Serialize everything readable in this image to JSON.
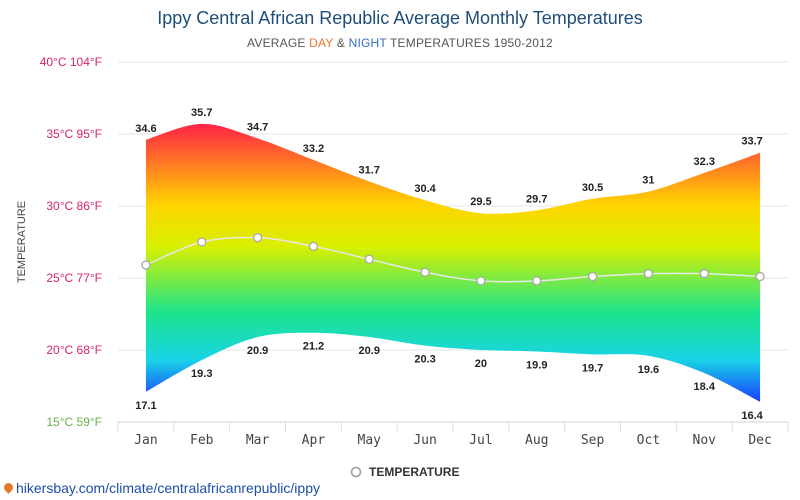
{
  "chart_data": {
    "type": "area",
    "title": "Ippy Central African Republic Average Monthly Temperatures",
    "subtitle": {
      "prefix": "AVERAGE ",
      "day_word": "DAY",
      "middle": " & ",
      "night_word": "NIGHT",
      "suffix": " TEMPERATURES 1950-2012"
    },
    "ylabel": "TEMPERATURE",
    "y_ticks": [
      {
        "value": 40,
        "label": "40°C 104°F"
      },
      {
        "value": 35,
        "label": "35°C 95°F"
      },
      {
        "value": 30,
        "label": "30°C 86°F"
      },
      {
        "value": 25,
        "label": "25°C 77°F"
      },
      {
        "value": 20,
        "label": "20°C 68°F"
      },
      {
        "value": 15,
        "label": "15°C 59°F"
      }
    ],
    "ylim": [
      15,
      40
    ],
    "categories": [
      "Jan",
      "Feb",
      "Mar",
      "Apr",
      "May",
      "Jun",
      "Jul",
      "Aug",
      "Sep",
      "Oct",
      "Nov",
      "Dec"
    ],
    "series": [
      {
        "name": "DAY",
        "values": [
          34.6,
          35.7,
          34.7,
          33.2,
          31.7,
          30.4,
          29.5,
          29.7,
          30.5,
          31,
          32.3,
          33.7
        ]
      },
      {
        "name": "NIGHT",
        "values": [
          17.1,
          19.3,
          20.9,
          21.2,
          20.9,
          20.3,
          20,
          19.9,
          19.7,
          19.6,
          18.4,
          16.4
        ]
      },
      {
        "name": "TEMPERATURE",
        "values": [
          25.9,
          27.5,
          27.8,
          27.2,
          26.3,
          25.4,
          24.8,
          24.8,
          25.1,
          25.3,
          25.3,
          25.1
        ]
      }
    ],
    "day_labels": [
      "34.6",
      "35.7",
      "34.7",
      "33.2",
      "31.7",
      "30.4",
      "29.5",
      "29.7",
      "30.5",
      "31",
      "32.3",
      "33.7"
    ],
    "night_labels": [
      "17.1",
      "19.3",
      "20.9",
      "21.2",
      "20.9",
      "20.3",
      "20",
      "19.9",
      "19.7",
      "19.6",
      "18.4",
      "16.4"
    ],
    "legend": {
      "label": "TEMPERATURE",
      "position": "bottom-center"
    },
    "grid": true,
    "colors": {
      "title": "#1f4e79",
      "tick_label": "#d6246e",
      "min_tick_label": "#6ab04c",
      "day_word": "#e8772e",
      "night_word": "#2f6fbf",
      "gradient_top": "#ff1a4b",
      "gradient_mid_warm": "#ffd400",
      "gradient_mid": "#c8f000",
      "gradient_cool": "#1de48a",
      "gradient_bottom": "#1a3dff",
      "avg_line": "#e8e8e8",
      "grid": "#e6e6e6"
    }
  },
  "source_text": "hikersbay.com/climate/centralafricanrepublic/ippy"
}
